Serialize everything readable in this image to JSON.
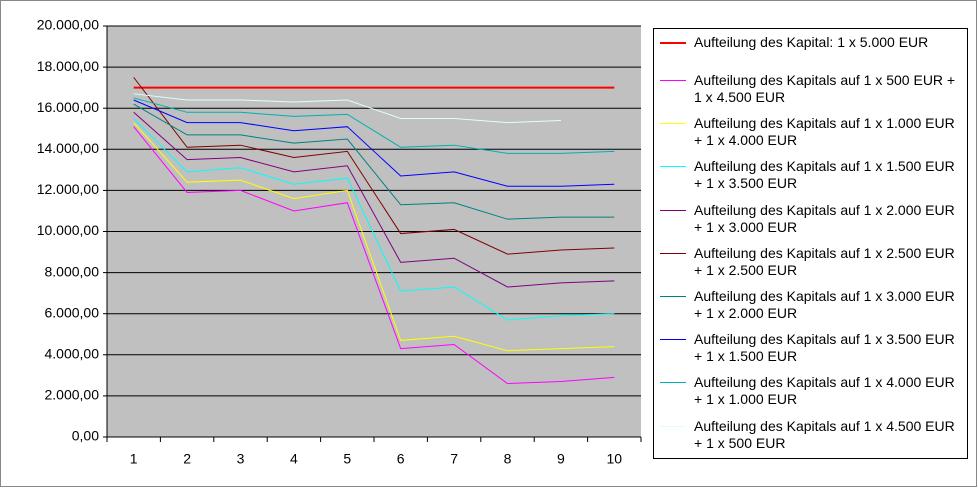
{
  "chart_data": {
    "type": "line",
    "categories": [
      "1",
      "2",
      "3",
      "4",
      "5",
      "6",
      "7",
      "8",
      "9",
      "10"
    ],
    "ylim": [
      0,
      20000
    ],
    "yticks": [
      {
        "value": 0,
        "label": "0,00"
      },
      {
        "value": 2000,
        "label": "2.000,00"
      },
      {
        "value": 4000,
        "label": "4.000,00"
      },
      {
        "value": 6000,
        "label": "6.000,00"
      },
      {
        "value": 8000,
        "label": "8.000,00"
      },
      {
        "value": 10000,
        "label": "10.000,00"
      },
      {
        "value": 12000,
        "label": "12.000,00"
      },
      {
        "value": 14000,
        "label": "14.000,00"
      },
      {
        "value": 16000,
        "label": "16.000,00"
      },
      {
        "value": 18000,
        "label": "18.000,00"
      },
      {
        "value": 20000,
        "label": "20.000,00"
      }
    ],
    "grid": true,
    "legend": "right",
    "series": [
      {
        "name": "Aufteilung des Kapital: 1 x 5.000 EUR",
        "color": "#ff0000",
        "values": [
          17000,
          17000,
          17000,
          17000,
          17000,
          17000,
          17000,
          17000,
          17000,
          17000
        ]
      },
      {
        "name": "Aufteilung des Kapitals auf 1 x 500 EUR + 1 x 4.500 EUR",
        "color": "#ff00ff",
        "values": [
          15100,
          11900,
          12000,
          11000,
          11400,
          4300,
          4500,
          2600,
          2700,
          2900
        ]
      },
      {
        "name": "Aufteilung des Kapitals auf 1 x 1.000 EUR + 1 x 4.000 EUR",
        "color": "#ffff00",
        "values": [
          15300,
          12400,
          12500,
          11600,
          12000,
          4700,
          4900,
          4200,
          4300,
          4400
        ]
      },
      {
        "name": "Aufteilung des Kapitals auf 1 x 1.500 EUR + 1 x 3.500 EUR",
        "color": "#00ffff",
        "values": [
          15500,
          12900,
          13100,
          12300,
          12600,
          7100,
          7300,
          5700,
          5900,
          6000
        ]
      },
      {
        "name": "Aufteilung des Kapitals auf 1 x 2.000 EUR + 1 x 3.000 EUR",
        "color": "#800080",
        "values": [
          15800,
          13500,
          13600,
          12900,
          13200,
          8500,
          8700,
          7300,
          7500,
          7600
        ]
      },
      {
        "name": "Aufteilung des Kapitals auf 1 x 2.500 EUR + 1 x 2.500 EUR",
        "color": "#800000",
        "values": [
          17500,
          14100,
          14200,
          13600,
          13900,
          9900,
          10100,
          8900,
          9100,
          9200
        ]
      },
      {
        "name": "Aufteilung des Kapitals auf 1 x 3.000 EUR + 1 x 2.000 EUR",
        "color": "#008080",
        "values": [
          16200,
          14700,
          14700,
          14300,
          14500,
          11300,
          11400,
          10600,
          10700,
          10700
        ]
      },
      {
        "name": "Aufteilung des Kapitals auf 1 x 3.500 EUR + 1 x 1.500 EUR",
        "color": "#0000ff",
        "values": [
          16400,
          15300,
          15300,
          14900,
          15100,
          12700,
          12900,
          12200,
          12200,
          12300
        ]
      },
      {
        "name": "Aufteilung des Kapitals auf 1 x 4.000 EUR + 1 x 1.000 EUR",
        "color": "#00b0b0",
        "values": [
          16500,
          15800,
          15800,
          15600,
          15700,
          14100,
          14200,
          13800,
          13800,
          13900
        ]
      },
      {
        "name": "Aufteilung des Kapitals auf 1 x 4.500 EUR + 1 x 500 EUR",
        "color": "#ddffff",
        "values": [
          16700,
          16400,
          16400,
          16300,
          16400,
          15500,
          15500,
          15300,
          15400,
          null
        ]
      }
    ]
  }
}
